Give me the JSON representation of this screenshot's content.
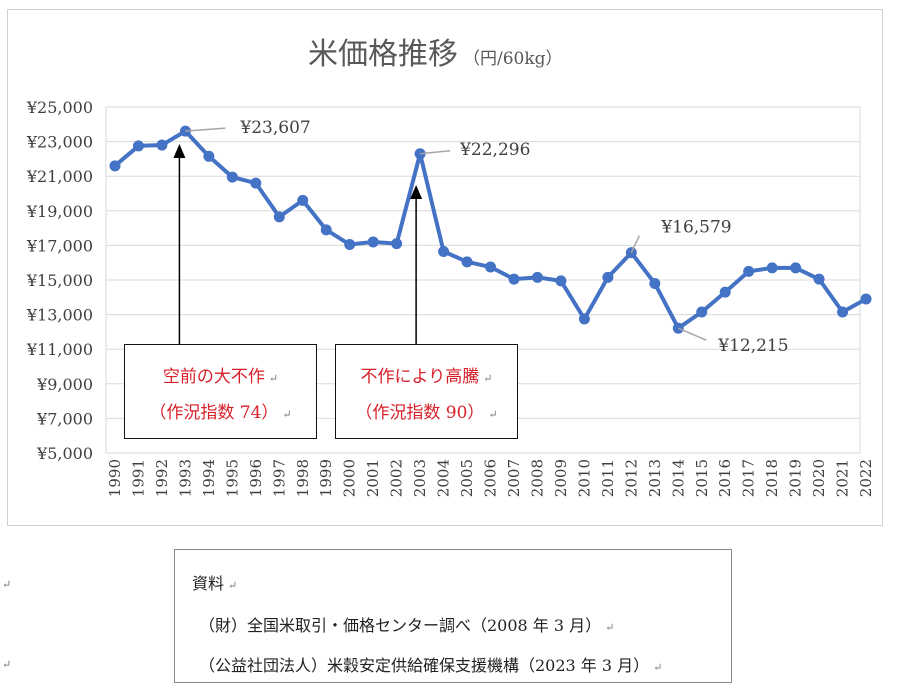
{
  "chart_data": {
    "type": "line",
    "title": "米価格推移",
    "subtitle": "（円/60kg）",
    "x": [
      "1990",
      "1991",
      "1992",
      "1993",
      "1994",
      "1995",
      "1996",
      "1997",
      "1998",
      "1999",
      "2000",
      "2001",
      "2002",
      "2003",
      "2004",
      "2005",
      "2006",
      "2007",
      "2008",
      "2009",
      "2010",
      "2011",
      "2012",
      "2013",
      "2014",
      "2015",
      "2016",
      "2017",
      "2018",
      "2019",
      "2020",
      "2021",
      "2022"
    ],
    "series": [
      {
        "values": [
          21600,
          22750,
          22800,
          23607,
          22150,
          20950,
          20600,
          18650,
          19600,
          17900,
          17050,
          17200,
          17100,
          22296,
          16650,
          16050,
          15750,
          15050,
          15150,
          14950,
          12750,
          15150,
          16579,
          14800,
          12215,
          13150,
          14300,
          15500,
          15700,
          15700,
          15050,
          13150,
          13900
        ],
        "color": "#4472c4"
      }
    ],
    "ylim": [
      5000,
      25000
    ],
    "yticks": [
      "¥25,000",
      "¥23,000",
      "¥21,000",
      "¥19,000",
      "¥17,000",
      "¥15,000",
      "¥13,000",
      "¥11,000",
      "¥9,000",
      "¥7,000",
      "¥5,000"
    ],
    "grid": true,
    "annotations": [
      {
        "x": "1993",
        "label": "¥23,607"
      },
      {
        "x": "2003",
        "label": "¥22,296"
      },
      {
        "x": "2012",
        "label": "¥16,579"
      },
      {
        "x": "2014",
        "label": "¥12,215"
      }
    ],
    "callouts": [
      {
        "x": "1993",
        "line1": "空前の大不作",
        "line2": "（作況指数 74）"
      },
      {
        "x": "2003",
        "line1": "不作により高騰",
        "line2": "（作況指数 90）"
      }
    ]
  },
  "source": {
    "heading": "資料",
    "line1": "（財）全国米取引・価格センター調べ（2008 年 3 月）",
    "line2": "（公益社団法人）米穀安定供給確保支援機構（2023 年 3 月）"
  },
  "paragraph_mark": "↵"
}
